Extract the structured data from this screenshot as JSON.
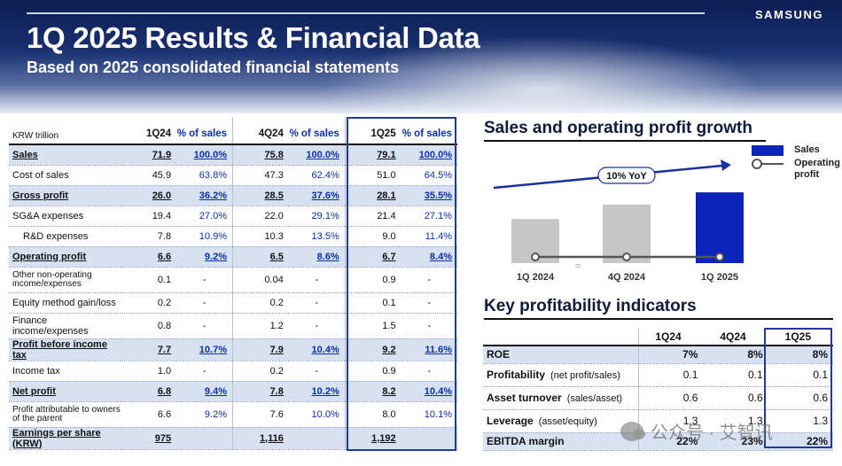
{
  "header": {
    "title": "1Q 2025 Results & Financial Data",
    "subtitle": "Based on 2025 consolidated financial statements",
    "logo": "SAMSUNG"
  },
  "fin_table": {
    "unit": "KRW trillion",
    "columns": [
      "1Q24",
      "% of sales",
      "4Q24",
      "% of sales",
      "1Q25",
      "% of sales"
    ],
    "rows": [
      {
        "label": "Sales",
        "style": "bold",
        "cells": [
          "71.9",
          "100.0%",
          "75.8",
          "100.0%",
          "79.1",
          "100.0%"
        ]
      },
      {
        "label": "Cost of sales",
        "style": "normal",
        "cells": [
          "45.9",
          "63.8%",
          "47.3",
          "62.4%",
          "51.0",
          "64.5%"
        ]
      },
      {
        "label": "Gross profit",
        "style": "bold",
        "cells": [
          "26.0",
          "36.2%",
          "28.5",
          "37.6%",
          "28.1",
          "35.5%"
        ]
      },
      {
        "label": "SG&A expenses",
        "style": "normal",
        "cells": [
          "19.4",
          "27.0%",
          "22.0",
          "29.1%",
          "21.4",
          "27.1%"
        ]
      },
      {
        "label": "R&D expenses",
        "style": "indent",
        "cells": [
          "7.8",
          "10.9%",
          "10.3",
          "13.5%",
          "9.0",
          "11.4%"
        ]
      },
      {
        "label": "Operating profit",
        "style": "bold",
        "cells": [
          "6.6",
          "9.2%",
          "6.5",
          "8.6%",
          "6.7",
          "8.4%"
        ]
      },
      {
        "label": "Other non-operating income/expenses",
        "style": "small",
        "cells": [
          "0.1",
          "-",
          "0.04",
          "-",
          "0.9",
          "-"
        ]
      },
      {
        "label": "Equity method gain/loss",
        "style": "normal",
        "cells": [
          "0.2",
          "-",
          "0.2",
          "-",
          "0.1",
          "-"
        ]
      },
      {
        "label": "Finance income/expenses",
        "style": "tall",
        "cells": [
          "0.8",
          "-",
          "1.2",
          "-",
          "1.5",
          "-"
        ]
      },
      {
        "label": "Profit before income tax",
        "style": "bold",
        "cells": [
          "7.7",
          "10.7%",
          "7.9",
          "10.4%",
          "9.2",
          "11.6%"
        ]
      },
      {
        "label": "Income tax",
        "style": "normal",
        "cells": [
          "1.0",
          "-",
          "0.2",
          "-",
          "0.9",
          "-"
        ]
      },
      {
        "label": "Net profit",
        "style": "bold",
        "cells": [
          "6.8",
          "9.4%",
          "7.8",
          "10.2%",
          "8.2",
          "10.4%"
        ]
      },
      {
        "label": "Profit attributable to owners of the parent",
        "style": "small",
        "cells": [
          "6.6",
          "9.2%",
          "7.6",
          "10.0%",
          "8.0",
          "10.1%"
        ]
      },
      {
        "label": "Earnings per share (KRW)",
        "style": "bold",
        "cells": [
          "975",
          "",
          "1,116",
          "",
          "1,192",
          ""
        ]
      }
    ]
  },
  "growth": {
    "title": "Sales and operating profit growth",
    "yoy_label": "10% YoY",
    "legend": {
      "sales": "Sales",
      "op": "Operating profit"
    },
    "colors": {
      "gray": "#c6c6c6",
      "blue": "#0a23b8",
      "line": "#555555"
    }
  },
  "chart_data": {
    "type": "bar",
    "categories": [
      "1Q 2024",
      "4Q 2024",
      "1Q 2025"
    ],
    "series": [
      {
        "name": "Sales",
        "values": [
          71.9,
          75.8,
          79.1
        ]
      },
      {
        "name": "Operating profit",
        "values": [
          6.6,
          6.5,
          6.7
        ]
      }
    ],
    "annotation": "10% YoY",
    "axis_break": true
  },
  "kpi": {
    "title": "Key profitability indicators",
    "columns": [
      "1Q24",
      "4Q24",
      "1Q25"
    ],
    "rows": [
      {
        "label": "ROE",
        "note": "",
        "shade": true,
        "cells": [
          "7%",
          "8%",
          "8%"
        ]
      },
      {
        "label": "Profitability",
        "note": "(net profit/sales)",
        "shade": false,
        "cells": [
          "0.1",
          "0.1",
          "0.1"
        ]
      },
      {
        "label": "Asset turnover",
        "note": "(sales/asset)",
        "shade": false,
        "cells": [
          "0.6",
          "0.6",
          "0.6"
        ]
      },
      {
        "label": "Leverage",
        "note": "(asset/equity)",
        "shade": false,
        "cells": [
          "1.3",
          "1.3",
          "1.3"
        ]
      },
      {
        "label": "EBITDA margin",
        "note": "",
        "shade": true,
        "cells": [
          "22%",
          "23%",
          "22%"
        ]
      }
    ]
  },
  "watermark": "公众号 · 艾智讯"
}
